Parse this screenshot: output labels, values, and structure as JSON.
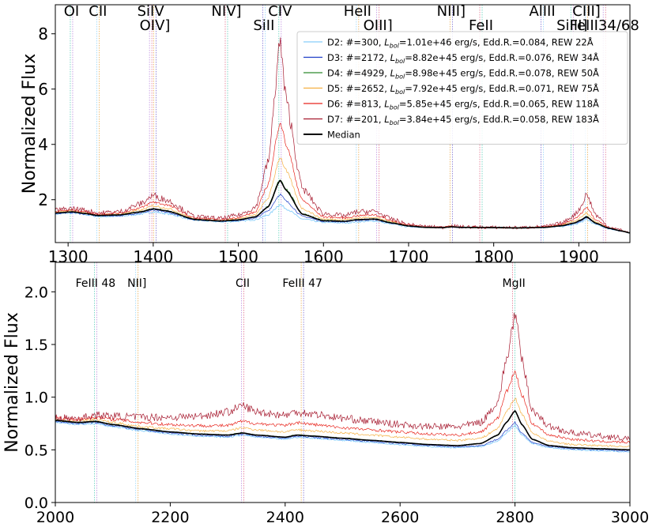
{
  "chart_data": [
    {
      "type": "line",
      "panel": "top",
      "ylabel": "Normalized Flux",
      "xlabel": "",
      "xlim": [
        1285,
        1960
      ],
      "ylim": [
        0.45,
        9.05
      ],
      "xticks": [
        1300,
        1400,
        1500,
        1600,
        1700,
        1800,
        1900
      ],
      "yticks": [
        2,
        4,
        6,
        8
      ],
      "grid": false,
      "legend_position": "top-right",
      "line_labels": [
        {
          "text": "OI",
          "x": 1304,
          "row": 1
        },
        {
          "text": "CII",
          "x": 1335,
          "row": 1
        },
        {
          "text": "SiIV",
          "x": 1397,
          "row": 1
        },
        {
          "text": "OIV]",
          "x": 1402,
          "row": 2
        },
        {
          "text": "NIV]",
          "x": 1486,
          "row": 1
        },
        {
          "text": "SiII",
          "x": 1530,
          "row": 2
        },
        {
          "text": "CIV",
          "x": 1549,
          "row": 1
        },
        {
          "text": "HeII",
          "x": 1640,
          "row": 1
        },
        {
          "text": "OIII]",
          "x": 1664,
          "row": 2
        },
        {
          "text": "NIII]",
          "x": 1750,
          "row": 1
        },
        {
          "text": "FeII",
          "x": 1785,
          "row": 2
        },
        {
          "text": "AlIII",
          "x": 1857,
          "row": 1
        },
        {
          "text": "SiIII]",
          "x": 1892,
          "row": 2
        },
        {
          "text": "CIII]",
          "x": 1909,
          "row": 1
        },
        {
          "text": "FeIII34/68",
          "x": 1930,
          "row": 2
        }
      ],
      "series": [
        {
          "name": "D2: #=300,   Lbol=1.01e+46 erg/s, Edd.R.=0.084, REW 22Å",
          "color": "#87cefa",
          "width": 0.9,
          "noise": 0.022,
          "values": [
            1.48,
            1.52,
            1.46,
            1.39,
            1.4,
            1.48,
            1.56,
            1.5,
            1.25,
            1.2,
            1.22,
            1.28,
            1.45,
            1.83,
            1.68,
            1.3,
            1.18,
            1.16,
            1.2,
            1.23,
            1.12,
            1.02,
            1.0,
            0.99,
            1.02,
            1.0,
            0.99,
            0.98,
            1.0,
            1.03,
            1.1,
            1.18,
            1.28,
            1.1,
            0.95,
            0.86,
            0.8
          ]
        },
        {
          "name": "D3: #=2172, Lbol=8.82e+45 erg/s, Edd.R.=0.076, REW 34Å",
          "color": "#1e3ec8",
          "width": 0.7,
          "noise": 0.018,
          "values": [
            1.5,
            1.54,
            1.48,
            1.41,
            1.42,
            1.52,
            1.62,
            1.55,
            1.27,
            1.22,
            1.25,
            1.33,
            1.6,
            2.2,
            1.95,
            1.4,
            1.22,
            1.2,
            1.25,
            1.28,
            1.15,
            1.04,
            1.0,
            0.99,
            1.02,
            1.0,
            0.99,
            0.98,
            1.0,
            1.05,
            1.13,
            1.22,
            1.35,
            1.13,
            0.96,
            0.86,
            0.8
          ]
        },
        {
          "name": "D4: #=4929, Lbol=8.98e+45 erg/s, Edd.R.=0.078, REW 50Å",
          "color": "#2e8b2e",
          "width": 0.7,
          "noise": 0.018,
          "values": [
            1.52,
            1.56,
            1.5,
            1.43,
            1.45,
            1.56,
            1.68,
            1.6,
            1.28,
            1.23,
            1.27,
            1.38,
            1.75,
            2.75,
            2.4,
            1.5,
            1.25,
            1.23,
            1.28,
            1.31,
            1.17,
            1.05,
            1.0,
            0.99,
            1.02,
            1.0,
            0.99,
            0.98,
            1.0,
            1.06,
            1.16,
            1.26,
            1.4,
            1.15,
            0.97,
            0.87,
            0.8
          ]
        },
        {
          "name": "D5: #=2652, Lbol=7.92e+45 erg/s, Edd.R.=0.071, REW 75Å",
          "color": "#f5b041",
          "width": 0.7,
          "noise": 0.022,
          "values": [
            1.55,
            1.59,
            1.53,
            1.45,
            1.48,
            1.62,
            1.78,
            1.7,
            1.3,
            1.25,
            1.31,
            1.45,
            2.05,
            3.55,
            3.05,
            1.68,
            1.3,
            1.28,
            1.34,
            1.37,
            1.2,
            1.06,
            1.01,
            0.99,
            1.03,
            1.0,
            0.99,
            0.98,
            1.01,
            1.08,
            1.22,
            1.35,
            1.52,
            1.2,
            0.98,
            0.87,
            0.8
          ]
        },
        {
          "name": "D6: #=813,   Lbol=5.85e+45 erg/s, Edd.R.=0.065, REW 118Å",
          "color": "#e8251d",
          "width": 0.7,
          "noise": 0.025,
          "values": [
            1.58,
            1.63,
            1.57,
            1.48,
            1.52,
            1.7,
            1.92,
            1.82,
            1.33,
            1.28,
            1.36,
            1.55,
            2.55,
            4.85,
            4.0,
            1.98,
            1.38,
            1.34,
            1.42,
            1.46,
            1.24,
            1.08,
            1.02,
            1.0,
            1.04,
            1.01,
            0.99,
            0.98,
            1.02,
            1.11,
            1.3,
            1.48,
            1.75,
            1.28,
            0.99,
            0.88,
            0.8
          ]
        },
        {
          "name": "D7: #=201,   Lbol=3.84e+45 erg/s, Edd.R.=0.058, REW 183Å",
          "color": "#a6192e",
          "width": 0.7,
          "noise": 0.06,
          "values": [
            1.62,
            1.68,
            1.62,
            1.52,
            1.56,
            1.85,
            2.15,
            2.0,
            1.38,
            1.32,
            1.44,
            1.72,
            3.35,
            7.7,
            5.6,
            2.4,
            1.5,
            1.42,
            1.56,
            1.58,
            1.3,
            1.1,
            1.03,
            1.0,
            1.06,
            1.02,
            1.0,
            0.99,
            1.03,
            1.15,
            1.45,
            1.72,
            2.2,
            1.45,
            1.02,
            0.9,
            0.8
          ]
        },
        {
          "name": "Median",
          "color": "#000000",
          "width": 1.6,
          "noise": 0,
          "values": [
            1.52,
            1.56,
            1.5,
            1.43,
            1.45,
            1.56,
            1.67,
            1.6,
            1.28,
            1.23,
            1.27,
            1.38,
            1.74,
            2.7,
            2.35,
            1.48,
            1.24,
            1.22,
            1.28,
            1.3,
            1.16,
            1.05,
            1.0,
            0.99,
            1.02,
            1.0,
            0.99,
            0.98,
            1.0,
            1.06,
            1.16,
            1.26,
            1.38,
            1.15,
            0.97,
            0.87,
            0.8
          ]
        }
      ],
      "x": [
        1285,
        1305,
        1320,
        1335,
        1360,
        1385,
        1400,
        1415,
        1450,
        1480,
        1500,
        1520,
        1535,
        1549,
        1556,
        1575,
        1600,
        1625,
        1640,
        1660,
        1680,
        1700,
        1720,
        1740,
        1750,
        1760,
        1800,
        1830,
        1860,
        1880,
        1895,
        1902,
        1909,
        1920,
        1935,
        1950,
        1960
      ]
    },
    {
      "type": "line",
      "panel": "bottom",
      "ylabel": "Normalized Flux",
      "xlabel": "",
      "xlim": [
        2000,
        3000
      ],
      "ylim": [
        0.0,
        2.28
      ],
      "xticks": [
        2000,
        2200,
        2400,
        2600,
        2800,
        3000
      ],
      "yticks": [
        0.0,
        0.5,
        1.0,
        1.5,
        2.0
      ],
      "grid": false,
      "line_labels": [
        {
          "text": "FeIII 48",
          "x": 2070,
          "row": 1
        },
        {
          "text": "NII]",
          "x": 2142,
          "row": 1
        },
        {
          "text": "CII",
          "x": 2326,
          "row": 1
        },
        {
          "text": "FeIII 47",
          "x": 2430,
          "row": 1
        },
        {
          "text": "MgII",
          "x": 2798,
          "row": 1
        }
      ],
      "x": [
        2000,
        2040,
        2070,
        2100,
        2150,
        2200,
        2250,
        2300,
        2326,
        2350,
        2400,
        2420,
        2450,
        2500,
        2550,
        2600,
        2650,
        2700,
        2740,
        2770,
        2785,
        2800,
        2812,
        2830,
        2860,
        2900,
        2950,
        3000
      ],
      "series": [
        {
          "name": "D2",
          "color": "#87cefa",
          "width": 0.9,
          "noise": 0.01,
          "values": [
            0.76,
            0.74,
            0.75,
            0.72,
            0.68,
            0.65,
            0.63,
            0.62,
            0.64,
            0.62,
            0.6,
            0.62,
            0.61,
            0.59,
            0.57,
            0.55,
            0.53,
            0.52,
            0.53,
            0.58,
            0.66,
            0.73,
            0.64,
            0.56,
            0.52,
            0.5,
            0.49,
            0.48
          ]
        },
        {
          "name": "D3",
          "color": "#1e3ec8",
          "width": 0.7,
          "noise": 0.012,
          "values": [
            0.77,
            0.75,
            0.76,
            0.73,
            0.69,
            0.66,
            0.64,
            0.63,
            0.65,
            0.63,
            0.61,
            0.63,
            0.62,
            0.6,
            0.58,
            0.56,
            0.54,
            0.53,
            0.54,
            0.6,
            0.68,
            0.76,
            0.66,
            0.57,
            0.53,
            0.51,
            0.5,
            0.49
          ]
        },
        {
          "name": "D4",
          "color": "#2e8b2e",
          "width": 0.7,
          "noise": 0.01,
          "values": [
            0.78,
            0.76,
            0.77,
            0.74,
            0.7,
            0.67,
            0.65,
            0.64,
            0.66,
            0.64,
            0.62,
            0.64,
            0.63,
            0.61,
            0.59,
            0.57,
            0.55,
            0.54,
            0.56,
            0.64,
            0.76,
            0.87,
            0.74,
            0.6,
            0.54,
            0.52,
            0.51,
            0.5
          ]
        },
        {
          "name": "D5",
          "color": "#f5b041",
          "width": 0.7,
          "noise": 0.015,
          "values": [
            0.79,
            0.77,
            0.79,
            0.76,
            0.72,
            0.7,
            0.68,
            0.68,
            0.71,
            0.69,
            0.67,
            0.69,
            0.68,
            0.66,
            0.64,
            0.62,
            0.6,
            0.59,
            0.61,
            0.7,
            0.86,
            0.99,
            0.84,
            0.66,
            0.58,
            0.55,
            0.54,
            0.53
          ]
        },
        {
          "name": "D6",
          "color": "#e8251d",
          "width": 0.7,
          "noise": 0.02,
          "values": [
            0.8,
            0.79,
            0.81,
            0.79,
            0.76,
            0.74,
            0.73,
            0.73,
            0.77,
            0.75,
            0.73,
            0.76,
            0.74,
            0.71,
            0.69,
            0.67,
            0.65,
            0.64,
            0.67,
            0.8,
            1.05,
            1.24,
            1.02,
            0.75,
            0.64,
            0.6,
            0.58,
            0.57
          ]
        },
        {
          "name": "D7",
          "color": "#a6192e",
          "width": 0.7,
          "noise": 0.045,
          "values": [
            0.8,
            0.8,
            0.83,
            0.82,
            0.81,
            0.81,
            0.82,
            0.86,
            0.92,
            0.86,
            0.83,
            0.86,
            0.84,
            0.8,
            0.77,
            0.74,
            0.72,
            0.72,
            0.76,
            0.95,
            1.35,
            1.78,
            1.35,
            0.88,
            0.72,
            0.66,
            0.63,
            0.6
          ]
        },
        {
          "name": "Median",
          "color": "#000000",
          "width": 1.6,
          "noise": 0,
          "values": [
            0.78,
            0.76,
            0.77,
            0.74,
            0.7,
            0.67,
            0.65,
            0.64,
            0.66,
            0.64,
            0.62,
            0.64,
            0.63,
            0.61,
            0.59,
            0.57,
            0.55,
            0.54,
            0.56,
            0.64,
            0.76,
            0.87,
            0.74,
            0.6,
            0.54,
            0.52,
            0.51,
            0.5
          ]
        }
      ]
    }
  ],
  "legend": {
    "entries": [
      {
        "prefix": "D2: #=300,",
        "lbol_label": "L",
        "lbol_sub": "bol",
        "rest": "=1.01e+46 erg/s, Edd.R.=0.084, REW 22Å",
        "color": "#87cefa"
      },
      {
        "prefix": "D3: #=2172,",
        "lbol_label": "L",
        "lbol_sub": "bol",
        "rest": "=8.82e+45 erg/s, Edd.R.=0.076, REW 34Å",
        "color": "#1e3ec8"
      },
      {
        "prefix": "D4: #=4929,",
        "lbol_label": "L",
        "lbol_sub": "bol",
        "rest": "=8.98e+45 erg/s, Edd.R.=0.078, REW 50Å",
        "color": "#2e8b2e"
      },
      {
        "prefix": "D5: #=2652,",
        "lbol_label": "L",
        "lbol_sub": "bol",
        "rest": "=7.92e+45 erg/s, Edd.R.=0.071, REW 75Å",
        "color": "#f5b041"
      },
      {
        "prefix": "D6: #=813,",
        "lbol_label": "L",
        "lbol_sub": "bol",
        "rest": "=5.85e+45 erg/s, Edd.R.=0.065, REW 118Å",
        "color": "#e8251d"
      },
      {
        "prefix": "D7: #=201,",
        "lbol_label": "L",
        "lbol_sub": "bol",
        "rest": "=3.84e+45 erg/s, Edd.R.=0.058, REW 183Å",
        "color": "#a6192e"
      },
      {
        "prefix": "Median",
        "lbol_label": "",
        "lbol_sub": "",
        "rest": "",
        "color": "#000000"
      }
    ]
  },
  "emission_line_marker_colors": [
    "#48c9b0",
    "#87cefa",
    "#b57edc",
    "#e8a33d",
    "#e06080",
    "#6a5acd"
  ]
}
